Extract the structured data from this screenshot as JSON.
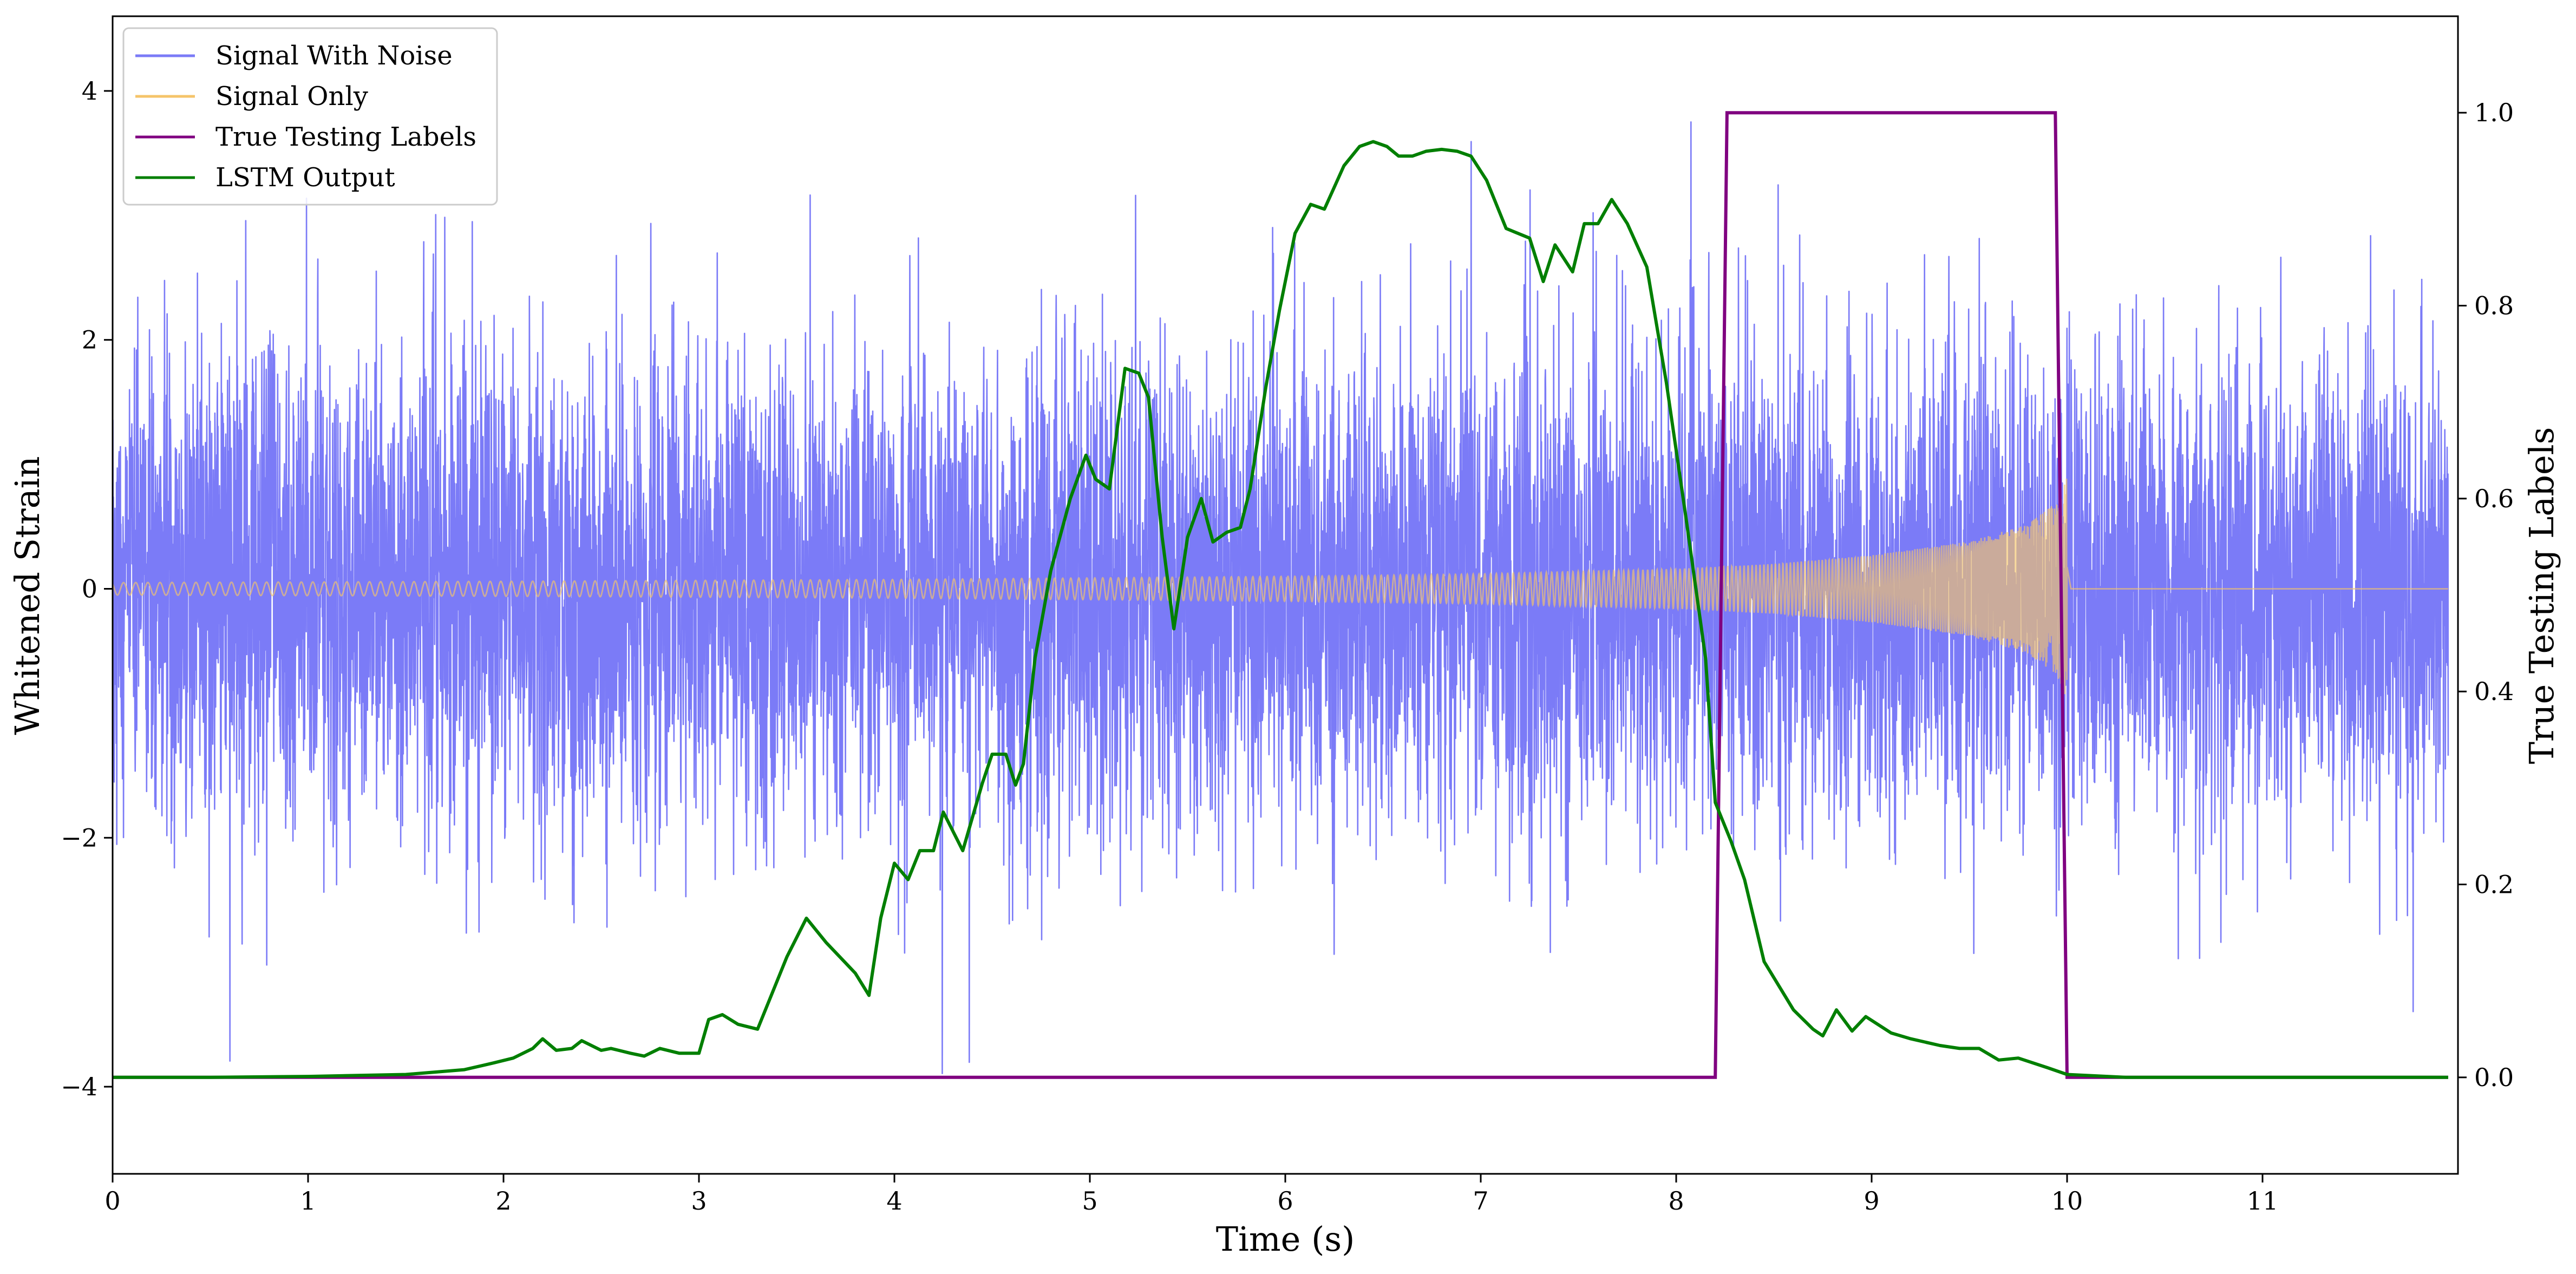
{
  "chart_data": {
    "type": "line",
    "title": "",
    "xlabel": "Time (s)",
    "ylabel": "Whitened Strain",
    "y2label": "True Testing Labels",
    "xlim": [
      0,
      12
    ],
    "ylim": [
      -4.7,
      4.6
    ],
    "y2lim": [
      -0.1,
      1.1
    ],
    "x_ticks": [
      0,
      1,
      2,
      3,
      4,
      5,
      6,
      7,
      8,
      9,
      10,
      11
    ],
    "x_tick_labels": [
      "0",
      "1",
      "2",
      "3",
      "4",
      "5",
      "6",
      "7",
      "8",
      "9",
      "10",
      "11"
    ],
    "y_ticks": [
      -4,
      -2,
      0,
      2,
      4
    ],
    "y_tick_labels": [
      "−4",
      "−2",
      "0",
      "2",
      "4"
    ],
    "y2_ticks": [
      0.0,
      0.2,
      0.4,
      0.6,
      0.8,
      1.0
    ],
    "y2_tick_labels": [
      "0.0",
      "0.2",
      "0.4",
      "0.6",
      "0.8",
      "1.0"
    ],
    "grid": false,
    "legend_position": "top-left",
    "series": [
      {
        "name": "Signal With Noise",
        "axis": "left",
        "color": "#7b7bf7",
        "kind": "noise",
        "description_values": {
          "std": 0.95,
          "peak_max": 4.2,
          "peak_min": -4.25
        }
      },
      {
        "name": "Signal Only",
        "axis": "left",
        "color": "#f5c46a",
        "kind": "chirp",
        "envelope": {
          "x": [
            0,
            2,
            4,
            6,
            7,
            8,
            8.5,
            9,
            9.5,
            9.8,
            9.95,
            10.0
          ],
          "amp": [
            0.05,
            0.06,
            0.075,
            0.1,
            0.12,
            0.16,
            0.2,
            0.27,
            0.38,
            0.52,
            0.7,
            0.9
          ]
        },
        "end_x": 10.0
      },
      {
        "name": "True Testing Labels",
        "axis": "right",
        "color": "#800080",
        "x": [
          0,
          8.2,
          8.26,
          9.94,
          10.0,
          11.95
        ],
        "y": [
          0,
          0,
          1,
          1,
          0,
          0
        ]
      },
      {
        "name": "LSTM Output",
        "axis": "right",
        "color": "#007f00",
        "x": [
          0,
          0.5,
          1.0,
          1.5,
          1.8,
          1.95,
          2.05,
          2.15,
          2.2,
          2.27,
          2.35,
          2.4,
          2.5,
          2.55,
          2.65,
          2.72,
          2.8,
          2.9,
          3.0,
          3.05,
          3.12,
          3.2,
          3.3,
          3.45,
          3.55,
          3.65,
          3.8,
          3.87,
          3.93,
          4.0,
          4.07,
          4.13,
          4.2,
          4.25,
          4.35,
          4.45,
          4.5,
          4.57,
          4.62,
          4.66,
          4.72,
          4.8,
          4.9,
          4.98,
          5.03,
          5.1,
          5.18,
          5.25,
          5.3,
          5.37,
          5.43,
          5.5,
          5.57,
          5.63,
          5.7,
          5.77,
          5.82,
          5.9,
          5.97,
          6.05,
          6.13,
          6.2,
          6.3,
          6.38,
          6.45,
          6.52,
          6.58,
          6.65,
          6.72,
          6.8,
          6.88,
          6.95,
          7.03,
          7.13,
          7.25,
          7.32,
          7.38,
          7.47,
          7.53,
          7.6,
          7.67,
          7.75,
          7.85,
          7.95,
          8.05,
          8.15,
          8.2,
          8.28,
          8.35,
          8.45,
          8.6,
          8.7,
          8.75,
          8.82,
          8.9,
          8.97,
          9.1,
          9.2,
          9.35,
          9.45,
          9.55,
          9.65,
          9.75,
          9.9,
          10.0,
          10.3,
          10.8,
          11.95
        ],
        "y": [
          0.0,
          0.0,
          0.001,
          0.003,
          0.008,
          0.015,
          0.02,
          0.03,
          0.04,
          0.028,
          0.03,
          0.038,
          0.028,
          0.03,
          0.025,
          0.022,
          0.03,
          0.025,
          0.025,
          0.06,
          0.065,
          0.055,
          0.05,
          0.125,
          0.165,
          0.14,
          0.108,
          0.085,
          0.165,
          0.222,
          0.205,
          0.235,
          0.235,
          0.275,
          0.235,
          0.305,
          0.335,
          0.335,
          0.303,
          0.325,
          0.435,
          0.525,
          0.6,
          0.645,
          0.62,
          0.61,
          0.735,
          0.73,
          0.705,
          0.56,
          0.465,
          0.56,
          0.6,
          0.555,
          0.565,
          0.57,
          0.61,
          0.715,
          0.795,
          0.875,
          0.905,
          0.9,
          0.945,
          0.965,
          0.97,
          0.965,
          0.955,
          0.955,
          0.96,
          0.962,
          0.96,
          0.955,
          0.93,
          0.88,
          0.87,
          0.825,
          0.863,
          0.835,
          0.885,
          0.885,
          0.91,
          0.885,
          0.84,
          0.72,
          0.58,
          0.435,
          0.285,
          0.245,
          0.205,
          0.12,
          0.07,
          0.05,
          0.043,
          0.07,
          0.048,
          0.063,
          0.046,
          0.04,
          0.033,
          0.03,
          0.03,
          0.018,
          0.02,
          0.01,
          0.003,
          0.0,
          0.0,
          0.0
        ]
      }
    ]
  }
}
